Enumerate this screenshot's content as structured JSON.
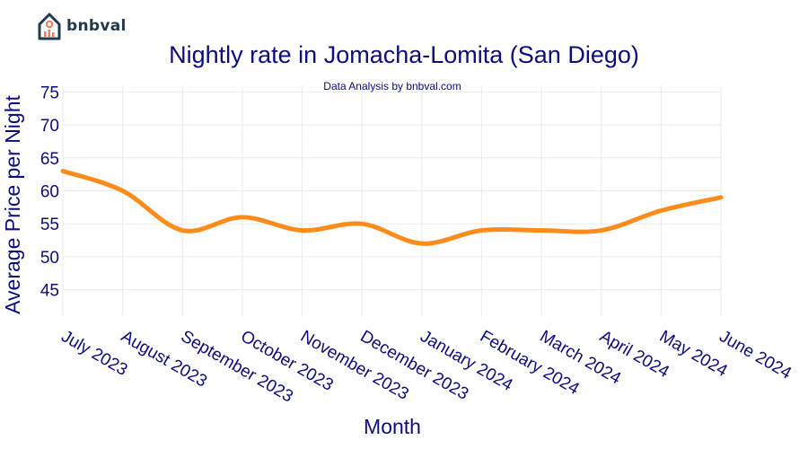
{
  "brand": {
    "name": "bnbval"
  },
  "chart_data": {
    "type": "line",
    "title": "Nightly rate in Jomacha-Lomita (San Diego)",
    "subtitle": "Data Analysis by bnbval.com",
    "xlabel": "Month",
    "ylabel": "Average Price per Night",
    "categories": [
      "July 2023",
      "August 2023",
      "September 2023",
      "October 2023",
      "November 2023",
      "December 2023",
      "January 2024",
      "February 2024",
      "March 2024",
      "April 2024",
      "May 2024",
      "June 2024"
    ],
    "series": [
      {
        "values": [
          63,
          60,
          54,
          56,
          54,
          55,
          52,
          54,
          54,
          54,
          57,
          59
        ]
      }
    ],
    "yticks": [
      45,
      50,
      55,
      60,
      65,
      70,
      75
    ],
    "ylim": [
      41,
      76
    ],
    "grid": true,
    "legend": "none",
    "colors": {
      "line": "#ff8c1a",
      "text": "#0d0d80",
      "grid": "#ebebeb"
    }
  }
}
